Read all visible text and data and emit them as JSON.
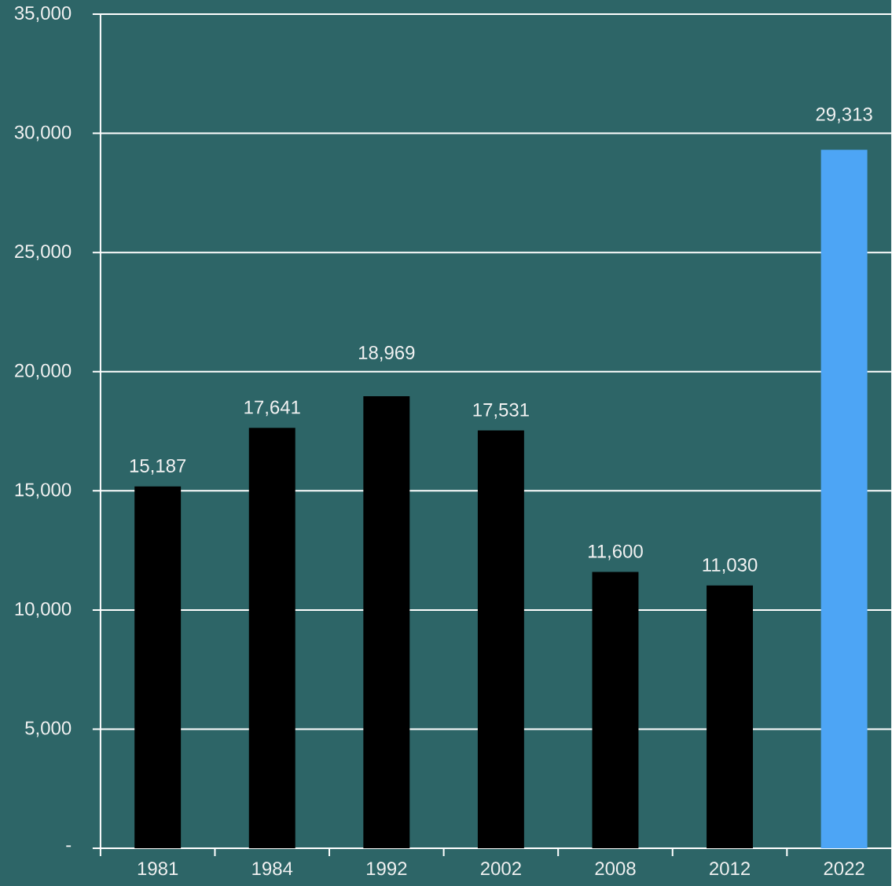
{
  "chart_data": {
    "type": "bar",
    "categories": [
      "1981",
      "1984",
      "1992",
      "2002",
      "2008",
      "2012",
      "2022"
    ],
    "values": [
      15187,
      17641,
      18969,
      17531,
      11600,
      11030,
      29313
    ],
    "colors": [
      "#000000",
      "#000000",
      "#000000",
      "#000000",
      "#000000",
      "#000000",
      "#4da5f5"
    ],
    "value_labels": [
      "15,187",
      "17,641",
      "18,969",
      "17,531",
      "11,600",
      "11,030",
      "29,313"
    ],
    "ylim": [
      0,
      35000
    ],
    "yticks": [
      {
        "value": 0,
        "label": "-"
      },
      {
        "value": 5000,
        "label": "5,000"
      },
      {
        "value": 10000,
        "label": "10,000"
      },
      {
        "value": 15000,
        "label": "15,000"
      },
      {
        "value": 20000,
        "label": "20,000"
      },
      {
        "value": 25000,
        "label": "25,000"
      },
      {
        "value": 30000,
        "label": "30,000"
      },
      {
        "value": 35000,
        "label": "35,000"
      }
    ],
    "grid": "y"
  }
}
